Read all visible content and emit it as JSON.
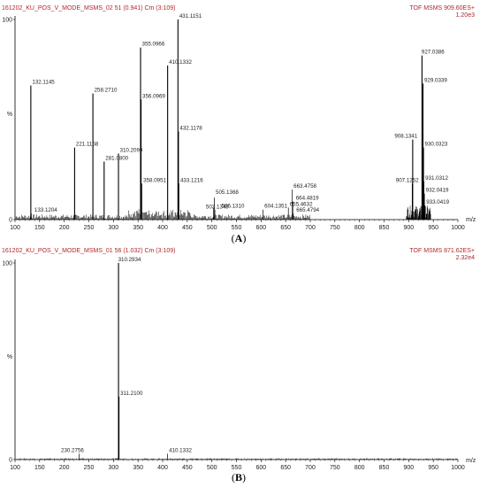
{
  "colors": {
    "header": "#b0282c",
    "trace": "#000000",
    "axis": "#000000",
    "text": "#222222"
  },
  "chart_data": [
    {
      "type": "bar",
      "panel_label": "A",
      "header_left": "161202_KU_POS_V_MODE_MSMS_02 51 (0.941) Cm (3:109)",
      "header_right": "TOF MSMS 909.60ES+",
      "intensity_scale": "1.20e3",
      "xlabel": "m/z",
      "ylabel": "%",
      "xlim": [
        100,
        1000
      ],
      "ylim": [
        0,
        100
      ],
      "x_ticks": [
        100,
        150,
        200,
        250,
        300,
        350,
        400,
        450,
        500,
        550,
        600,
        650,
        700,
        750,
        800,
        850,
        900,
        950,
        1000
      ],
      "y_ticks": [
        0,
        100
      ],
      "peaks": [
        {
          "mz": 132.1145,
          "intensity": 67,
          "label": "132.1145"
        },
        {
          "mz": 133.1204,
          "intensity": 3,
          "label": "133.1204"
        },
        {
          "mz": 221.1158,
          "intensity": 36,
          "label": "221.1158"
        },
        {
          "mz": 258.271,
          "intensity": 63,
          "label": "258.2710"
        },
        {
          "mz": 281.08,
          "intensity": 29,
          "label": "281.0800"
        },
        {
          "mz": 310.2099,
          "intensity": 33,
          "label": "310.2099"
        },
        {
          "mz": 355.0966,
          "intensity": 86,
          "label": "355.0966"
        },
        {
          "mz": 356.0969,
          "intensity": 60,
          "label": "356.0969"
        },
        {
          "mz": 358.0951,
          "intensity": 18,
          "label": "358.0951"
        },
        {
          "mz": 410.1332,
          "intensity": 77,
          "label": "410.1332"
        },
        {
          "mz": 431.1151,
          "intensity": 100,
          "label": "431.1151"
        },
        {
          "mz": 432.1178,
          "intensity": 44,
          "label": "432.1178"
        },
        {
          "mz": 433.1216,
          "intensity": 18,
          "label": "433.1216"
        },
        {
          "mz": 503.1349,
          "intensity": 6,
          "label": "503.1349"
        },
        {
          "mz": 505.1368,
          "intensity": 11,
          "label": "505.1368"
        },
        {
          "mz": 506.131,
          "intensity": 5,
          "label": "506.1310"
        },
        {
          "mz": 604.1351,
          "intensity": 5,
          "label": "604.1351"
        },
        {
          "mz": 655.4632,
          "intensity": 6,
          "label": "655.4632"
        },
        {
          "mz": 663.4758,
          "intensity": 15,
          "label": "663.4758"
        },
        {
          "mz": 664.4819,
          "intensity": 9,
          "label": "664.4819"
        },
        {
          "mz": 665.4794,
          "intensity": 3,
          "label": "665.4794"
        },
        {
          "mz": 907.1252,
          "intensity": 18,
          "label": "907.1252"
        },
        {
          "mz": 908.1341,
          "intensity": 40,
          "label": "908.1341"
        },
        {
          "mz": 927.0386,
          "intensity": 82,
          "label": "927.0386"
        },
        {
          "mz": 929.0339,
          "intensity": 68,
          "label": "929.0339"
        },
        {
          "mz": 930.0323,
          "intensity": 36,
          "label": "930.0323"
        },
        {
          "mz": 931.0312,
          "intensity": 19,
          "label": "931.0312"
        },
        {
          "mz": 932.0419,
          "intensity": 13,
          "label": "932.0419"
        },
        {
          "mz": 933.0419,
          "intensity": 7,
          "label": "933.0419"
        }
      ]
    },
    {
      "type": "bar",
      "panel_label": "B",
      "header_left": "161202_KU_POS_V_MODE_MSMS_01 56 (1.032) Cm (3:109)",
      "header_right": "TOF MSMS 871.62ES+",
      "intensity_scale": "2.32e4",
      "xlabel": "m/z",
      "ylabel": "%",
      "xlim": [
        100,
        1000
      ],
      "ylim": [
        0,
        100
      ],
      "x_ticks": [
        100,
        150,
        200,
        250,
        300,
        350,
        400,
        450,
        500,
        550,
        600,
        650,
        700,
        750,
        800,
        850,
        900,
        950,
        1000
      ],
      "y_ticks": [
        0,
        100
      ],
      "peaks": [
        {
          "mz": 230.2756,
          "intensity": 3,
          "label": "230.2756"
        },
        {
          "mz": 310.2934,
          "intensity": 100,
          "label": "310.2934"
        },
        {
          "mz": 311.21,
          "intensity": 32,
          "label": "311.2100"
        },
        {
          "mz": 410.1332,
          "intensity": 3,
          "label": "410.1332"
        }
      ]
    }
  ]
}
